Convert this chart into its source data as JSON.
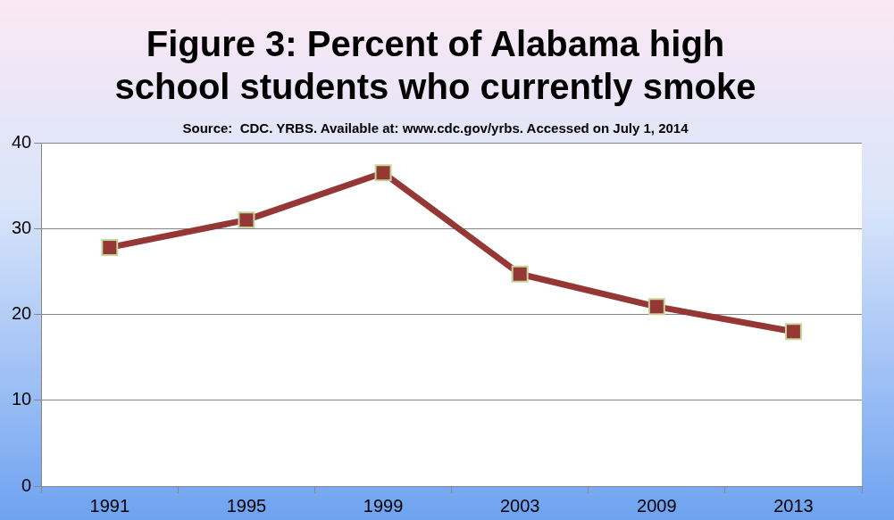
{
  "chart_data": {
    "type": "line",
    "title": [
      "Figure 3: Percent of Alabama high",
      "school students who currently smoke"
    ],
    "annotations": [
      "Source:  CDC. YRBS. Available at: www.cdc.gov/yrbs. Accessed on July 1, 2014"
    ],
    "categories": [
      "1991",
      "1995",
      "1999",
      "2003",
      "2009",
      "2013"
    ],
    "series": [
      {
        "color": "#953735",
        "values": [
          27.8,
          31.0,
          36.5,
          24.7,
          20.9,
          18.0
        ]
      }
    ],
    "ylim": [
      0,
      40
    ],
    "yticks": [
      0,
      10,
      20,
      30,
      40
    ],
    "grid": "y",
    "legend": false,
    "marker": "square",
    "line_style": "solid"
  }
}
